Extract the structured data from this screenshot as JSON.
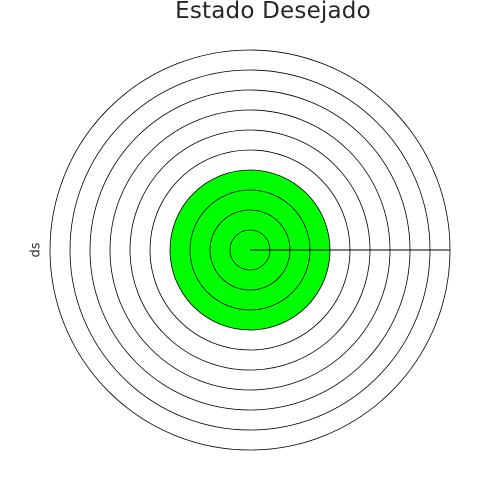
{
  "chart_data": {
    "type": "radar",
    "title": "Estado Desejado",
    "ylabel": "ds",
    "rlim": [
      0,
      10
    ],
    "ring_count": 10,
    "grid": true,
    "legend": "none",
    "spokes": [
      {
        "angle_deg": 0,
        "value": 10
      }
    ],
    "filled_region": {
      "r": 4,
      "color": "#00ff00"
    },
    "colors": {
      "ring": "#000000",
      "background": "#ffffff",
      "title": "#262626"
    }
  }
}
